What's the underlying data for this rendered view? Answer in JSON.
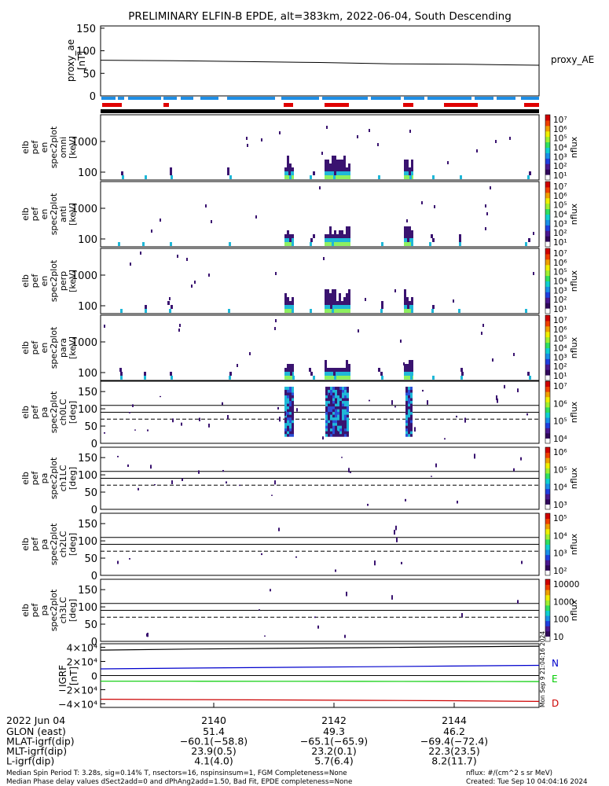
{
  "title": "PRELIMINARY ELFIN-B EPDE, alt=383km, 2022-06-04, South Descending",
  "colors": {
    "sun_bar": "#1e8ee6",
    "flag_bar": "#e00000",
    "trace": "#000000",
    "grf_n": "#0000cc",
    "grf_e": "#00cc00",
    "grf_d": "#cc0000",
    "low": "#3a1370",
    "mid": "#1fb8d8",
    "high": "#8ef060"
  },
  "proxy": {
    "ylabel": "proxy_ae\n[nT]",
    "right_label": "proxy_AE",
    "yticks": [
      "150",
      "100",
      "50",
      "0"
    ],
    "ylim": [
      0,
      155
    ],
    "values": [
      79,
      78,
      76,
      74,
      71,
      70,
      68
    ]
  },
  "spec_panels": [
    {
      "ylabel": "elb\npef\nen\nspec2plot\nomni\n[keV]",
      "cb_label": "nflux",
      "cb_ticks": [
        "10⁷",
        "10⁶",
        "10⁵",
        "10⁴",
        "10³",
        "10²",
        "10¹"
      ],
      "yticks": [
        "1000",
        "100"
      ]
    },
    {
      "ylabel": "elb\npef\nen\nspec2plot\nanti\n[keV]",
      "cb_label": "nflux",
      "cb_ticks": [
        "10⁷",
        "10⁶",
        "10⁵",
        "10⁴",
        "10³",
        "10²",
        "10¹"
      ],
      "yticks": [
        "1000",
        "100"
      ]
    },
    {
      "ylabel": "elb\npef\nen\nspec2plot\nperp\n[keV]",
      "cb_label": "nflux",
      "cb_ticks": [
        "10⁷",
        "10⁶",
        "10⁵",
        "10⁴",
        "10³",
        "10²",
        "10¹"
      ],
      "yticks": [
        "1000",
        "100"
      ]
    },
    {
      "ylabel": "elb\npef\nen\nspec2plot\npara\n[keV]",
      "cb_label": "nflux",
      "cb_ticks": [
        "10⁷",
        "10⁶",
        "10⁵",
        "10⁴",
        "10³",
        "10²",
        "10¹"
      ],
      "yticks": [
        "1000",
        "100"
      ]
    }
  ],
  "pa_panels": [
    {
      "ylabel": "elb\npef\npa\nspec2plot\nch0LC\n[deg]",
      "cb_label": "nflux",
      "cb_ticks": [
        "10⁷",
        "10⁶",
        "10⁵",
        "10⁴"
      ],
      "yticks": [
        "150",
        "100",
        "50",
        "0"
      ]
    },
    {
      "ylabel": "elb\npef\npa\nspec2plot\nch1LC\n[deg]",
      "cb_label": "nflux",
      "cb_ticks": [
        "10⁶",
        "10⁵",
        "10⁴",
        "10³"
      ],
      "yticks": [
        "150",
        "100",
        "50",
        "0"
      ]
    },
    {
      "ylabel": "elb\npef\npa\nspec2plot\nch2LC\n[deg]",
      "cb_label": "nflux",
      "cb_ticks": [
        "10⁵",
        "10⁴",
        "10³",
        "10²"
      ],
      "yticks": [
        "150",
        "100",
        "50",
        "0"
      ]
    },
    {
      "ylabel": "elb\npef\npa\nspec2plot\nch3LC\n[deg]",
      "cb_label": "nflux",
      "cb_ticks": [
        "10000",
        "1000",
        "100",
        "10"
      ],
      "yticks": [
        "150",
        "100",
        "50",
        "0"
      ]
    }
  ],
  "grf": {
    "ylabel": "IGRF\n[nT]",
    "yticks": [
      "4×10⁴",
      "2×10⁴",
      "0",
      "−2×10⁴",
      "−4×10⁴"
    ],
    "legend": [
      "N",
      "E",
      "D"
    ],
    "ylim": [
      -45000,
      45000
    ],
    "series": [
      {
        "name": "N",
        "values": [
          9500,
          10500,
          11500,
          12500,
          13500,
          14500
        ]
      },
      {
        "name": "E",
        "values": [
          -8000,
          -8000,
          -8100,
          -8200,
          -8300,
          -8400
        ]
      },
      {
        "name": "D",
        "values": [
          -33500,
          -34000,
          -34500,
          -35000,
          -35500,
          -36500
        ]
      }
    ],
    "top": {
      "name": "F",
      "values": [
        36000,
        37500,
        38500,
        39500,
        40500,
        41500
      ]
    }
  },
  "time_axis": {
    "date_label": "2022 Jun 04",
    "ticks": [
      "2140",
      "2142",
      "2144"
    ]
  },
  "orbit_rows": [
    {
      "label": "GLON (east)",
      "values": [
        "51.4",
        "49.3",
        "46.2"
      ]
    },
    {
      "label": "MLAT-igrf(dip)",
      "values": [
        "−60.1(−58.8)",
        "−65.1(−65.9)",
        "−69.4(−72.4)"
      ]
    },
    {
      "label": "MLT-igrf(dip)",
      "values": [
        "23.9(0.5)",
        "23.2(0.1)",
        "22.3(23.5)"
      ]
    },
    {
      "label": "L-igrf(dip)",
      "values": [
        "4.1(4.0)",
        "5.7(6.4)",
        "8.2(11.7)"
      ]
    }
  ],
  "footer": {
    "line1": "Median Spin Period T: 3.28s, sig=0.14% T, nsectors=16, nspinsinsum=1, FGM Completeness=None",
    "line2": "Median Phase delay values dSect2add=0 and dPhAng2add=1.50, Bad Fit, EPDE completeness=None",
    "units": "nflux: #/(cm^2 s sr MeV)",
    "created": "Created: Tue Sep 10 04:04:16 2024",
    "side_stamp": "Mon Sep 9 21:04:16 2024"
  }
}
